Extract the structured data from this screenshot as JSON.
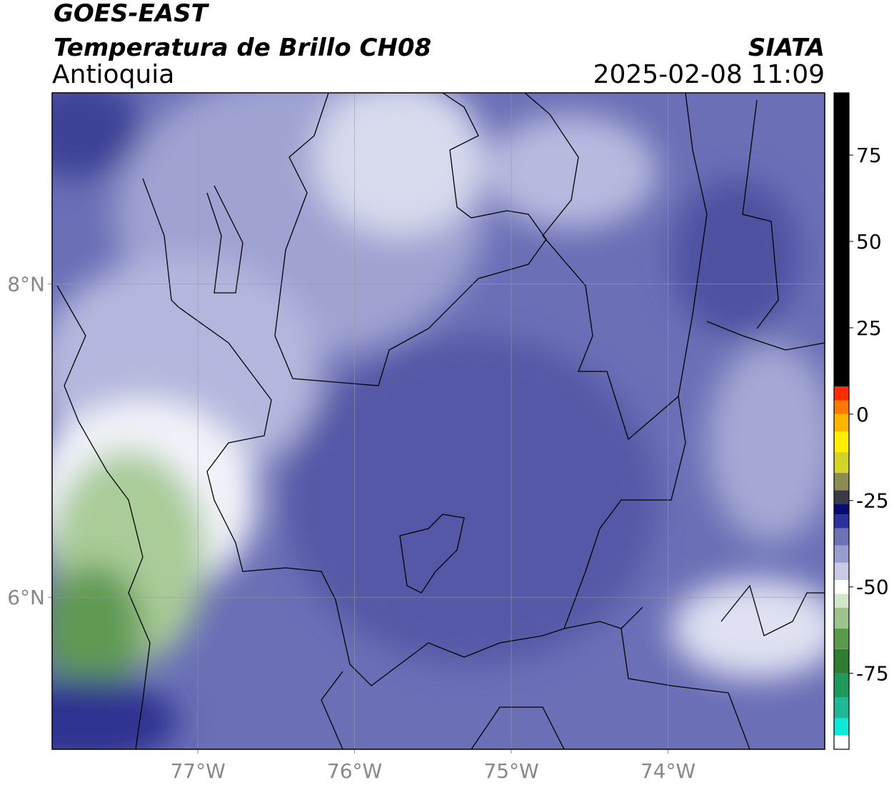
{
  "map": {
    "title": "GOES-EAST",
    "subtitle": "Temperatura de Brillo CH08",
    "source": "SIATA",
    "region": "Antioquia",
    "datetime": "2025-02-08 11:09",
    "xlim": [
      -77.93,
      -73.0
    ],
    "ylim": [
      5.03,
      9.22
    ],
    "xticks": [
      {
        "value": -77,
        "label": "77°W"
      },
      {
        "value": -76,
        "label": "76°W"
      },
      {
        "value": -75,
        "label": "75°W"
      },
      {
        "value": -74,
        "label": "74°W"
      }
    ],
    "yticks": [
      {
        "value": 8,
        "label": "8°N"
      },
      {
        "value": 6,
        "label": "6°N"
      }
    ],
    "grid": true,
    "colorbar": {
      "lim": [
        -97,
        93
      ],
      "ticks": [
        75,
        50,
        25,
        0,
        -25,
        -50,
        -75
      ],
      "segments": [
        {
          "value": -97,
          "color": "#ffffff"
        },
        {
          "value": -93,
          "color": "#10e8d8"
        },
        {
          "value": -88,
          "color": "#1fb99a"
        },
        {
          "value": -82,
          "color": "#1e9a5a"
        },
        {
          "value": -75,
          "color": "#2e7d32"
        },
        {
          "value": -68,
          "color": "#5a9a4a"
        },
        {
          "value": -62,
          "color": "#9cc48c"
        },
        {
          "value": -56,
          "color": "#d2e6cc"
        },
        {
          "value": -52,
          "color": "#ffffff"
        },
        {
          "value": -48,
          "color": "#c8cbe6"
        },
        {
          "value": -43,
          "color": "#9a9ecf"
        },
        {
          "value": -38,
          "color": "#6d72b6"
        },
        {
          "value": -33,
          "color": "#2c309a"
        },
        {
          "value": -29,
          "color": "#0a0a70"
        },
        {
          "value": -26,
          "color": "#3a3a48"
        },
        {
          "value": -22,
          "color": "#8c8c50"
        },
        {
          "value": -17,
          "color": "#d4d428"
        },
        {
          "value": -11,
          "color": "#ffee00"
        },
        {
          "value": -5,
          "color": "#ffb400"
        },
        {
          "value": 0,
          "color": "#ff7800"
        },
        {
          "value": 4,
          "color": "#ff2a00"
        },
        {
          "value": 8,
          "color": "#000000"
        }
      ]
    }
  }
}
